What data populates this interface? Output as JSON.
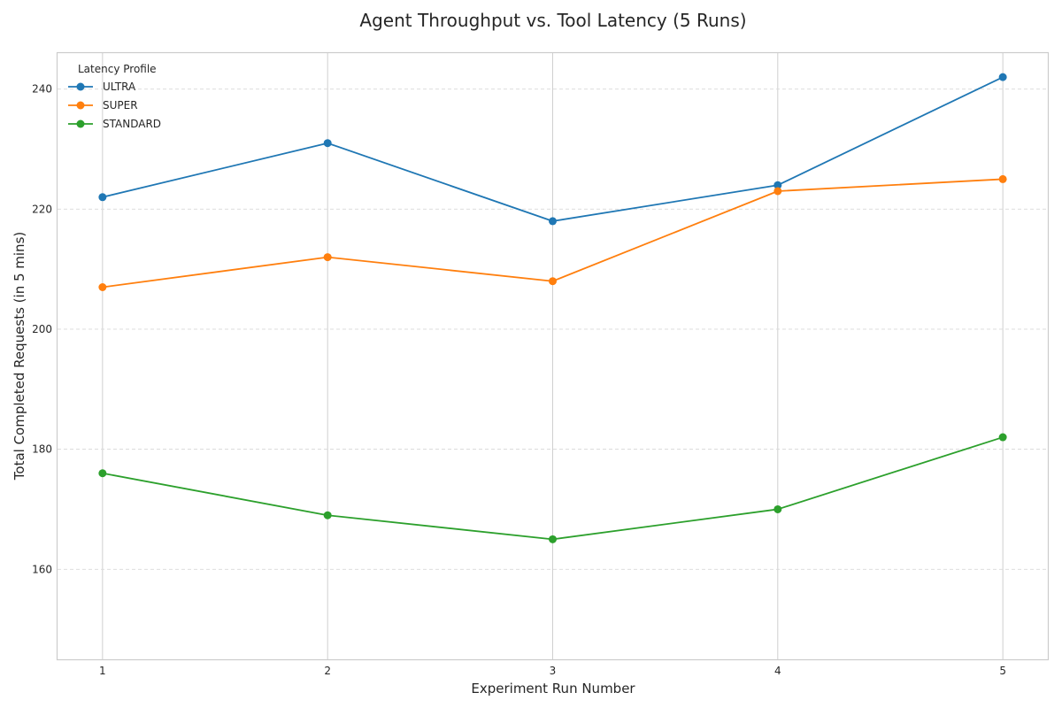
{
  "chart_data": {
    "type": "line",
    "title": "Agent Throughput vs. Tool Latency (5 Runs)",
    "xlabel": "Experiment Run Number",
    "ylabel": "Total Completed Requests (in 5 mins)",
    "x": [
      1,
      2,
      3,
      4,
      5
    ],
    "xlim": [
      0.8,
      5.2
    ],
    "ylim": [
      145,
      246
    ],
    "yticks": [
      160,
      180,
      200,
      220,
      240
    ],
    "grid": true,
    "legend": {
      "title": "Latency Profile",
      "placement": "top-left"
    },
    "series": [
      {
        "name": "ULTRA",
        "color": "#1f77b4",
        "values": [
          222,
          231,
          218,
          224,
          242
        ]
      },
      {
        "name": "SUPER",
        "color": "#ff7f0e",
        "values": [
          207,
          212,
          208,
          223,
          225
        ]
      },
      {
        "name": "STANDARD",
        "color": "#2ca02c",
        "values": [
          176,
          169,
          165,
          170,
          182
        ]
      }
    ]
  }
}
